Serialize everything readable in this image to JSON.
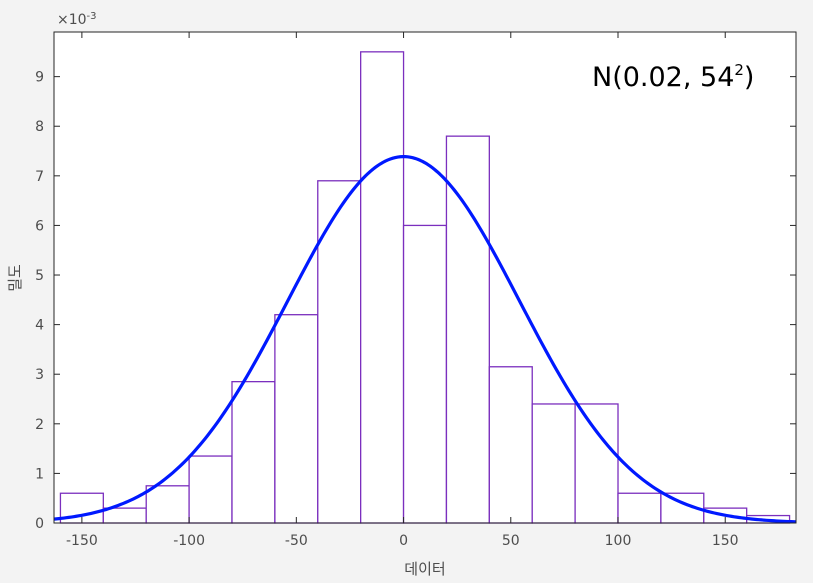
{
  "chart_data": {
    "type": "bar",
    "subtype": "histogram-with-normal-pdf",
    "xlabel": "데이터",
    "ylabel": "밀도",
    "xlim": [
      -163,
      183
    ],
    "ylim": [
      0,
      0.0099
    ],
    "exponent_label": "×10-3",
    "xticks": [
      -150,
      -100,
      -50,
      0,
      50,
      100,
      150
    ],
    "xtick_labels": [
      "-150",
      "-100",
      "-50",
      "0",
      "50",
      "100",
      "150"
    ],
    "yticks": [
      0,
      0.001,
      0.002,
      0.003,
      0.004,
      0.005,
      0.006,
      0.007,
      0.008,
      0.009
    ],
    "ytick_labels": [
      "0",
      "1",
      "2",
      "3",
      "4",
      "5",
      "6",
      "7",
      "8",
      "9"
    ],
    "grid": false,
    "bin_width": 20,
    "bins": [
      {
        "x_start": -160,
        "x_end": -140,
        "density": 0.0006
      },
      {
        "x_start": -140,
        "x_end": -120,
        "density": 0.0003
      },
      {
        "x_start": -120,
        "x_end": -100,
        "density": 0.00075
      },
      {
        "x_start": -100,
        "x_end": -80,
        "density": 0.00135
      },
      {
        "x_start": -80,
        "x_end": -60,
        "density": 0.00285
      },
      {
        "x_start": -60,
        "x_end": -40,
        "density": 0.0042
      },
      {
        "x_start": -40,
        "x_end": -20,
        "density": 0.0069
      },
      {
        "x_start": -20,
        "x_end": 0,
        "density": 0.0095
      },
      {
        "x_start": 0,
        "x_end": 20,
        "density": 0.006
      },
      {
        "x_start": 20,
        "x_end": 40,
        "density": 0.0078
      },
      {
        "x_start": 40,
        "x_end": 60,
        "density": 0.00315
      },
      {
        "x_start": 60,
        "x_end": 80,
        "density": 0.0024
      },
      {
        "x_start": 80,
        "x_end": 100,
        "density": 0.0024
      },
      {
        "x_start": 100,
        "x_end": 120,
        "density": 0.0006
      },
      {
        "x_start": 120,
        "x_end": 140,
        "density": 0.0006
      },
      {
        "x_start": 140,
        "x_end": 160,
        "density": 0.0003
      },
      {
        "x_start": 160,
        "x_end": 180,
        "density": 0.00015
      }
    ],
    "fit": {
      "distribution": "normal",
      "mean": 0.02,
      "sd": 54
    },
    "annotation": {
      "text": "N(0.02, 54",
      "superscript": "2",
      "suffix": ")"
    },
    "colors": {
      "bar_edge": "#7b2fbe",
      "bar_fill": "#ffffff",
      "curve": "#0019ff",
      "axes": "#262626",
      "plot_bg": "#ffffff",
      "figure_bg": "#f3f3f3"
    }
  }
}
